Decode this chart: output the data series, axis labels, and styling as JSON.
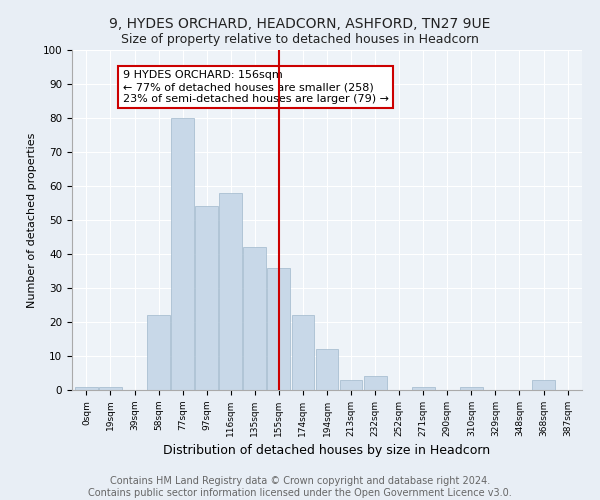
{
  "title1": "9, HYDES ORCHARD, HEADCORN, ASHFORD, TN27 9UE",
  "title2": "Size of property relative to detached houses in Headcorn",
  "xlabel": "Distribution of detached houses by size in Headcorn",
  "ylabel": "Number of detached properties",
  "bin_labels": [
    "0sqm",
    "19sqm",
    "39sqm",
    "58sqm",
    "77sqm",
    "97sqm",
    "116sqm",
    "135sqm",
    "155sqm",
    "174sqm",
    "194sqm",
    "213sqm",
    "232sqm",
    "252sqm",
    "271sqm",
    "290sqm",
    "310sqm",
    "329sqm",
    "348sqm",
    "368sqm",
    "387sqm"
  ],
  "bar_heights": [
    1,
    1,
    0,
    22,
    80,
    54,
    58,
    42,
    36,
    22,
    12,
    3,
    4,
    0,
    1,
    0,
    1,
    0,
    0,
    3,
    0
  ],
  "bar_color": "#c8d8e8",
  "bar_edge_color": "#a0b8cc",
  "vline_x": 8,
  "vline_color": "#cc0000",
  "annotation_line1": "9 HYDES ORCHARD: 156sqm",
  "annotation_line2": "← 77% of detached houses are smaller (258)",
  "annotation_line3": "23% of semi-detached houses are larger (79) →",
  "annotation_box_color": "#ffffff",
  "annotation_box_edge": "#cc0000",
  "ylim": [
    0,
    100
  ],
  "yticks": [
    0,
    10,
    20,
    30,
    40,
    50,
    60,
    70,
    80,
    90,
    100
  ],
  "footer": "Contains HM Land Registry data © Crown copyright and database right 2024.\nContains public sector information licensed under the Open Government Licence v3.0.",
  "bg_color": "#e8eef5",
  "plot_bg_color": "#eef3f8",
  "title1_fontsize": 10,
  "title2_fontsize": 9,
  "xlabel_fontsize": 9,
  "ylabel_fontsize": 8,
  "footer_fontsize": 7,
  "annotation_fontsize": 8
}
